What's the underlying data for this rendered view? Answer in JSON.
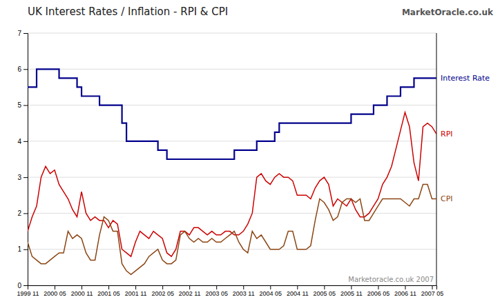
{
  "chart_data": {
    "type": "line",
    "title": "UK Interest Rates / Inflation - RPI & CPI",
    "annotations": [
      "Marketoracle.co.uk 2007",
      "MarketOracle.co.uk"
    ],
    "x": [
      0,
      1,
      2,
      3,
      4,
      5,
      6,
      7,
      8,
      9,
      10,
      11,
      12,
      13,
      14,
      15,
      16,
      17,
      18,
      19,
      20,
      21,
      22,
      23,
      24,
      25,
      26,
      27,
      28,
      29,
      30,
      31,
      32,
      33,
      34,
      35,
      36,
      37,
      38,
      39,
      40,
      41,
      42,
      43,
      44,
      45,
      46,
      47,
      48,
      49,
      50,
      51,
      52,
      53,
      54,
      55,
      56,
      57,
      58,
      59,
      60,
      61,
      62,
      63,
      64,
      65,
      66,
      67,
      68,
      69,
      70,
      71,
      72,
      73,
      74,
      75,
      76,
      77,
      78,
      79,
      80,
      81,
      82,
      83,
      84,
      85,
      86,
      87,
      88,
      89,
      90,
      91
    ],
    "xlim": [
      0,
      91
    ],
    "xticks": [
      {
        "value": 0,
        "label": "1999 11"
      },
      {
        "value": 6,
        "label": "2000 05"
      },
      {
        "value": 12,
        "label": "2000 11"
      },
      {
        "value": 18,
        "label": "2001 05"
      },
      {
        "value": 24,
        "label": "2001 11"
      },
      {
        "value": 30,
        "label": "2002 05"
      },
      {
        "value": 36,
        "label": "2002 11"
      },
      {
        "value": 42,
        "label": "2003 05"
      },
      {
        "value": 48,
        "label": "2003 11"
      },
      {
        "value": 54,
        "label": "2004 05"
      },
      {
        "value": 60,
        "label": "2004 11"
      },
      {
        "value": 66,
        "label": "2005 05"
      },
      {
        "value": 72,
        "label": "2005 11"
      },
      {
        "value": 78,
        "label": "2006 05"
      },
      {
        "value": 84,
        "label": "2006 11"
      },
      {
        "value": 90,
        "label": "2007 05"
      }
    ],
    "ylim": [
      0,
      7
    ],
    "yticks": [
      0,
      1,
      2,
      3,
      4,
      5,
      6,
      7
    ],
    "grid": true,
    "series": [
      {
        "name": "Interest Rate",
        "type": "step",
        "color": "#00008B",
        "values": [
          5.5,
          5.5,
          6.0,
          6.0,
          6.0,
          6.0,
          6.0,
          5.75,
          5.75,
          5.75,
          5.75,
          5.5,
          5.25,
          5.25,
          5.25,
          5.25,
          5.0,
          5.0,
          5.0,
          5.0,
          5.0,
          4.5,
          4.0,
          4.0,
          4.0,
          4.0,
          4.0,
          4.0,
          4.0,
          3.75,
          3.75,
          3.5,
          3.5,
          3.5,
          3.5,
          3.5,
          3.5,
          3.5,
          3.5,
          3.5,
          3.5,
          3.5,
          3.5,
          3.5,
          3.5,
          3.5,
          3.75,
          3.75,
          3.75,
          3.75,
          3.75,
          4.0,
          4.0,
          4.0,
          4.0,
          4.25,
          4.5,
          4.5,
          4.5,
          4.5,
          4.5,
          4.5,
          4.5,
          4.5,
          4.5,
          4.5,
          4.5,
          4.5,
          4.5,
          4.5,
          4.5,
          4.5,
          4.75,
          4.75,
          4.75,
          4.75,
          4.75,
          5.0,
          5.0,
          5.0,
          5.25,
          5.25,
          5.25,
          5.5,
          5.5,
          5.5,
          5.75,
          5.75,
          5.75,
          5.75,
          5.75,
          5.75
        ]
      },
      {
        "name": "RPI",
        "type": "line",
        "color": "#CC0000",
        "values": [
          1.5,
          1.9,
          2.2,
          3.0,
          3.3,
          3.1,
          3.2,
          2.8,
          2.6,
          2.4,
          2.1,
          1.9,
          2.6,
          2.0,
          1.8,
          1.9,
          1.8,
          1.8,
          1.6,
          1.8,
          1.7,
          1.0,
          0.9,
          0.8,
          1.2,
          1.5,
          1.4,
          1.3,
          1.5,
          1.4,
          1.3,
          0.9,
          0.8,
          1.0,
          1.5,
          1.5,
          1.4,
          1.6,
          1.6,
          1.5,
          1.4,
          1.5,
          1.4,
          1.4,
          1.5,
          1.5,
          1.4,
          1.4,
          1.5,
          1.7,
          2.0,
          3.0,
          3.1,
          2.9,
          2.8,
          3.0,
          3.1,
          3.0,
          3.0,
          2.9,
          2.5,
          2.5,
          2.5,
          2.4,
          2.7,
          2.9,
          3.0,
          2.8,
          2.2,
          2.4,
          2.3,
          2.2,
          2.4,
          2.1,
          1.9,
          1.9,
          2.0,
          2.2,
          2.4,
          2.8,
          3.0,
          3.3,
          3.8,
          4.3,
          4.8,
          4.4,
          3.4,
          2.9,
          4.4,
          4.5,
          4.4,
          4.2
        ]
      },
      {
        "name": "CPI",
        "type": "line",
        "color": "#8B4513",
        "values": [
          1.2,
          0.8,
          0.7,
          0.6,
          0.6,
          0.7,
          0.8,
          0.9,
          0.9,
          1.5,
          1.3,
          1.4,
          1.3,
          0.9,
          0.7,
          0.7,
          1.4,
          1.9,
          1.8,
          1.5,
          1.5,
          0.6,
          0.4,
          0.3,
          0.4,
          0.5,
          0.6,
          0.8,
          0.9,
          1.0,
          0.7,
          0.6,
          0.6,
          0.7,
          1.4,
          1.5,
          1.3,
          1.2,
          1.3,
          1.2,
          1.2,
          1.3,
          1.2,
          1.2,
          1.3,
          1.4,
          1.5,
          1.2,
          1.0,
          0.9,
          1.5,
          1.3,
          1.4,
          1.2,
          1.0,
          1.0,
          1.0,
          1.1,
          1.5,
          1.5,
          1.0,
          1.0,
          1.0,
          1.1,
          1.8,
          2.4,
          2.3,
          2.1,
          1.8,
          1.9,
          2.3,
          2.4,
          2.4,
          2.3,
          2.4,
          1.8,
          1.8,
          2.0,
          2.2,
          2.4,
          2.4,
          2.4,
          2.4,
          2.4,
          2.3,
          2.2,
          2.4,
          2.4,
          2.8,
          2.8,
          2.4,
          2.4
        ]
      }
    ]
  }
}
